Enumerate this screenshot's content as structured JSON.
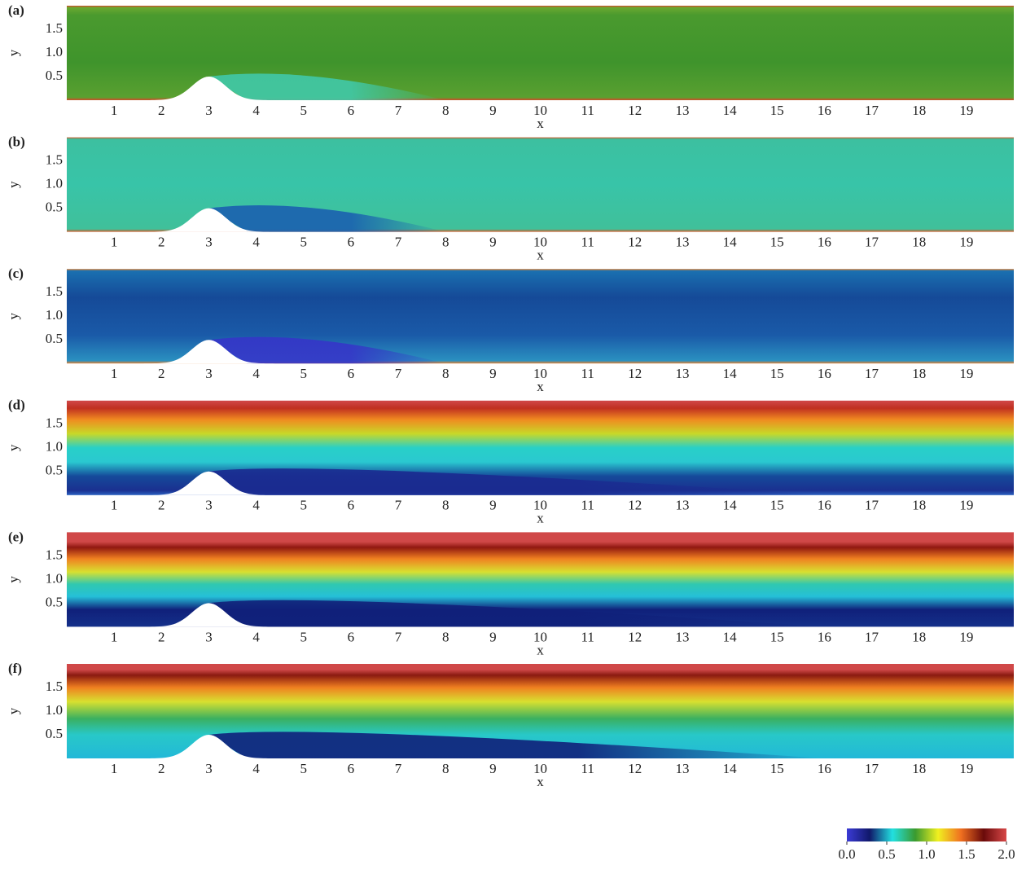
{
  "chart_data": [
    {
      "type": "heatmap",
      "panel_label": "(a)",
      "xlabel": "x",
      "ylabel": "y",
      "xlim": [
        0,
        20
      ],
      "ylim": [
        0,
        2
      ],
      "xticks": [
        1,
        2,
        3,
        4,
        5,
        6,
        7,
        8,
        9,
        10,
        11,
        12,
        13,
        14,
        15,
        16,
        17,
        18,
        19
      ],
      "yticks": [
        0.5,
        {
          "value": 1,
          "label": "1.0"
        },
        1.5
      ]
    },
    {
      "type": "heatmap",
      "panel_label": "(b)",
      "xlabel": "x",
      "ylabel": "y",
      "xlim": [
        0,
        20
      ],
      "ylim": [
        0,
        2
      ],
      "xticks": [
        1,
        2,
        3,
        4,
        5,
        6,
        7,
        8,
        9,
        10,
        11,
        12,
        13,
        14,
        15,
        16,
        17,
        18,
        19
      ],
      "yticks": [
        0.5,
        {
          "value": 1,
          "label": "1.0"
        },
        1.5
      ]
    },
    {
      "type": "heatmap",
      "panel_label": "(c)",
      "xlabel": "x",
      "ylabel": "y",
      "xlim": [
        0,
        20
      ],
      "ylim": [
        0,
        2
      ],
      "xticks": [
        1,
        2,
        3,
        4,
        5,
        6,
        7,
        8,
        9,
        10,
        11,
        12,
        13,
        14,
        15,
        16,
        17,
        18,
        19
      ],
      "yticks": [
        0.5,
        {
          "value": 1,
          "label": "1.0"
        },
        1.5
      ]
    },
    {
      "type": "heatmap",
      "panel_label": "(d)",
      "xlabel": "x",
      "ylabel": "y",
      "xlim": [
        0,
        20
      ],
      "ylim": [
        0,
        2
      ],
      "xticks": [
        1,
        2,
        3,
        4,
        5,
        6,
        7,
        8,
        9,
        10,
        11,
        12,
        13,
        14,
        15,
        16,
        17,
        18,
        19
      ],
      "yticks": [
        0.5,
        {
          "value": 1,
          "label": "1.0"
        },
        1.5
      ]
    },
    {
      "type": "heatmap",
      "panel_label": "(e)",
      "xlabel": "x",
      "ylabel": "y",
      "xlim": [
        0,
        20
      ],
      "ylim": [
        0,
        2
      ],
      "xticks": [
        1,
        2,
        3,
        4,
        5,
        6,
        7,
        8,
        9,
        10,
        11,
        12,
        13,
        14,
        15,
        16,
        17,
        18,
        19
      ],
      "yticks": [
        0.5,
        {
          "value": 1,
          "label": "1.0"
        },
        1.5
      ]
    },
    {
      "type": "heatmap",
      "panel_label": "(f)",
      "xlabel": "x",
      "ylabel": "y",
      "xlim": [
        0,
        20
      ],
      "ylim": [
        0,
        2
      ],
      "xticks": [
        1,
        2,
        3,
        4,
        5,
        6,
        7,
        8,
        9,
        10,
        11,
        12,
        13,
        14,
        15,
        16,
        17,
        18,
        19
      ],
      "yticks": [
        0.5,
        {
          "value": 1,
          "label": "1.0"
        },
        1.5
      ]
    }
  ],
  "colorbar": {
    "lim": [
      0,
      2
    ],
    "colors": [
      "#3b3bd6",
      "#10186a",
      "#22e0e0",
      "#3a9a2f",
      "#f0f020",
      "#f07020",
      "#6a0a0a",
      "#d84848"
    ],
    "ticks": [
      {
        "value": 0,
        "label": "0.0"
      },
      0.5,
      {
        "value": 1,
        "label": "1.0"
      },
      1.5,
      {
        "value": 2,
        "label": "2.0"
      }
    ]
  }
}
